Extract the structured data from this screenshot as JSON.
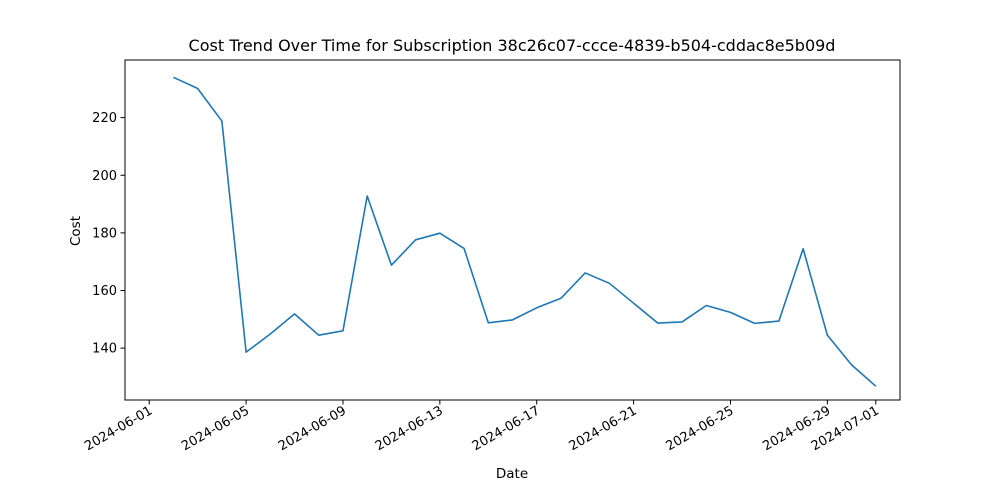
{
  "chart_data": {
    "type": "line",
    "title": "Cost Trend Over Time for Subscription 38c26c07-ccce-4839-b504-cddac8e5b09d",
    "xlabel": "Date",
    "ylabel": "Cost",
    "xlim": [
      "2024-05-31",
      "2024-07-02"
    ],
    "ylim": [
      122,
      240
    ],
    "x_ticks": [
      "2024-06-01",
      "2024-06-05",
      "2024-06-09",
      "2024-06-13",
      "2024-06-17",
      "2024-06-21",
      "2024-06-25",
      "2024-06-29",
      "2024-07-01"
    ],
    "y_ticks": [
      140,
      160,
      180,
      200,
      220
    ],
    "grid": false,
    "series": [
      {
        "color": "#1f77b4",
        "x": [
          "2024-06-02",
          "2024-06-03",
          "2024-06-04",
          "2024-06-05",
          "2024-06-06",
          "2024-06-07",
          "2024-06-08",
          "2024-06-09",
          "2024-06-10",
          "2024-06-11",
          "2024-06-12",
          "2024-06-13",
          "2024-06-14",
          "2024-06-15",
          "2024-06-16",
          "2024-06-17",
          "2024-06-18",
          "2024-06-19",
          "2024-06-20",
          "2024-06-21",
          "2024-06-22",
          "2024-06-23",
          "2024-06-24",
          "2024-06-25",
          "2024-06-26",
          "2024-06-27",
          "2024-06-28",
          "2024-06-29",
          "2024-06-30",
          "2024-07-01"
        ],
        "values": [
          234.0,
          230.1,
          218.8,
          138.6,
          144.9,
          151.9,
          144.5,
          146.0,
          192.8,
          168.8,
          177.6,
          179.9,
          174.6,
          148.8,
          149.8,
          154.0,
          157.3,
          166.1,
          162.5,
          155.6,
          148.7,
          149.1,
          154.8,
          152.4,
          148.6,
          149.4,
          174.5,
          144.5,
          134.2,
          126.8
        ]
      }
    ]
  }
}
